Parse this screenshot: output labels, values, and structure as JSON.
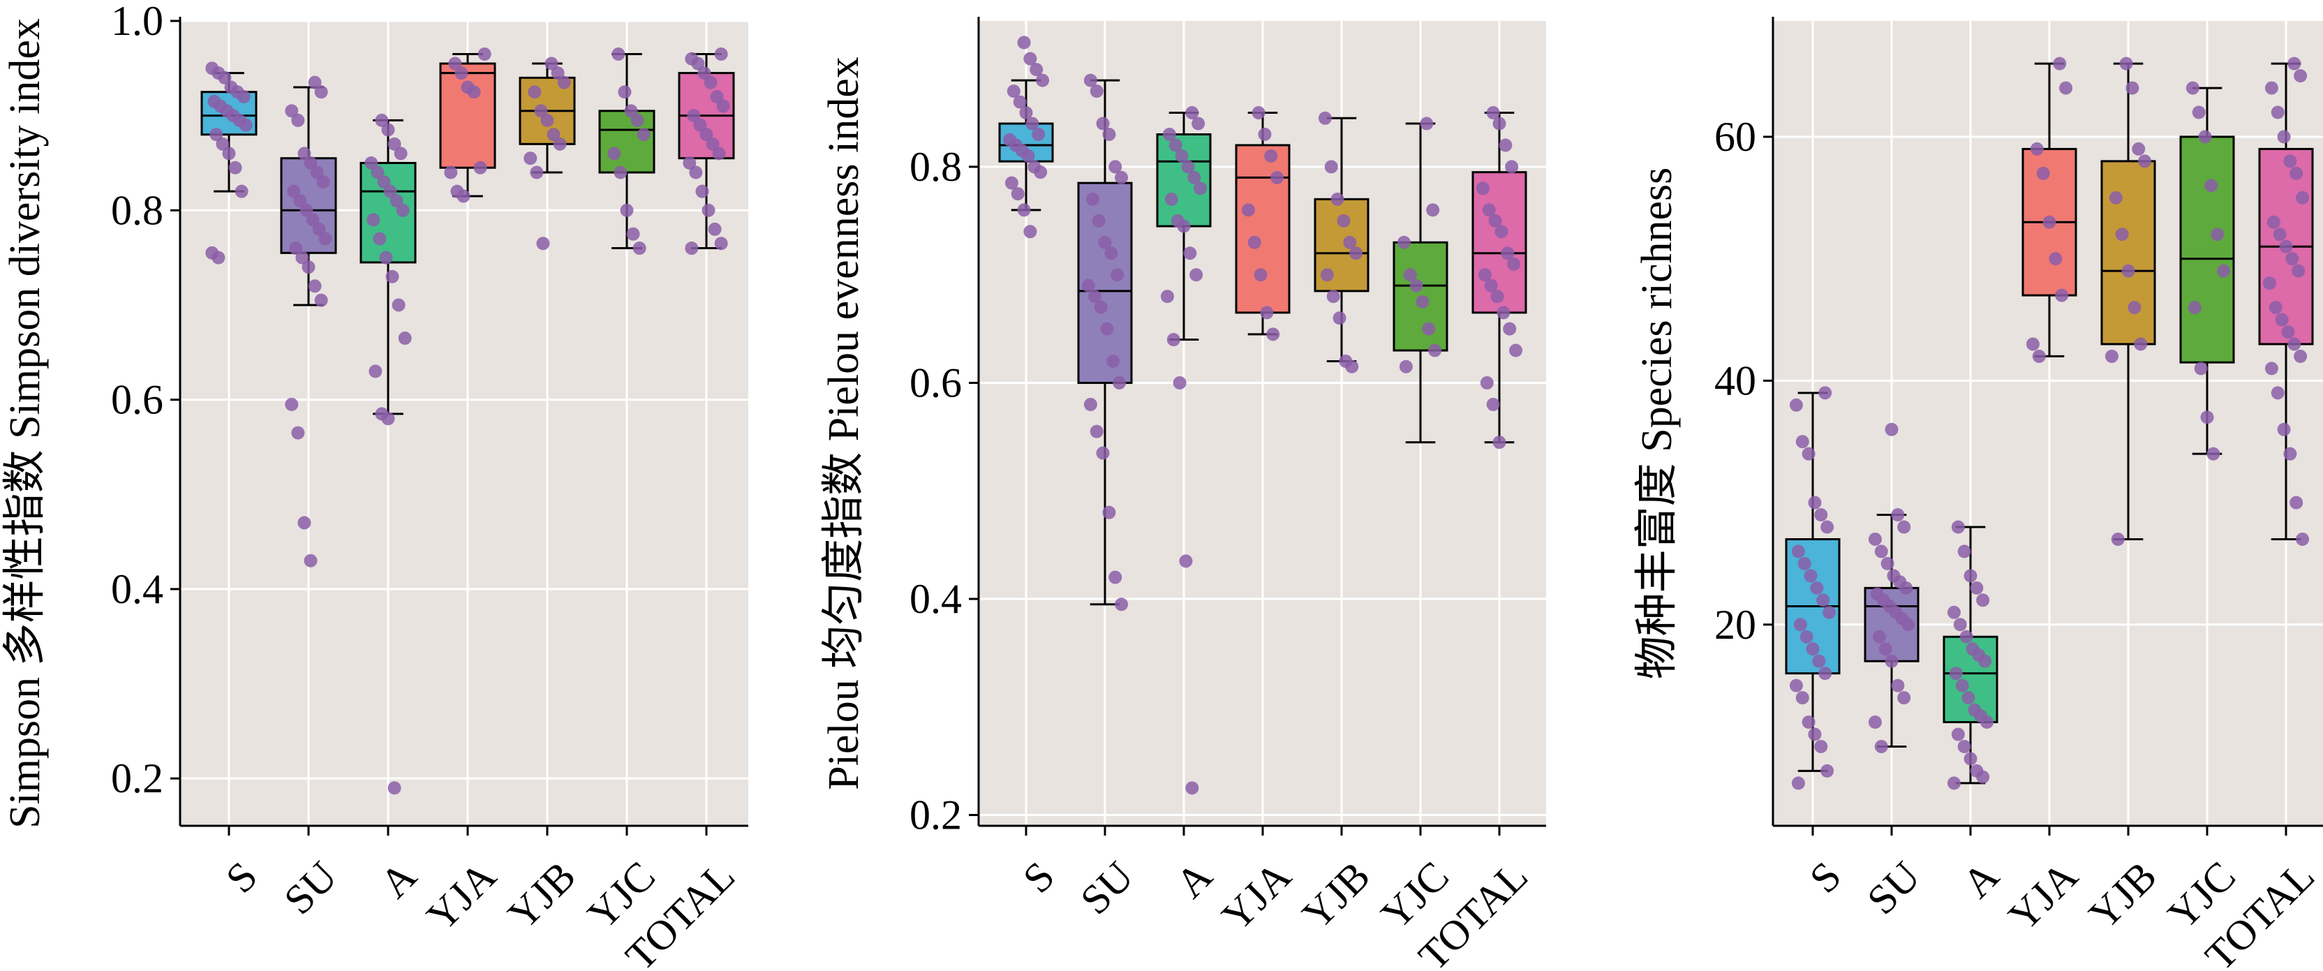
{
  "colors": {
    "panel_bg": "#e8e3df",
    "grid": "#ffffff",
    "point": "#8b5ea8",
    "groups": [
      "#4cb3d9",
      "#8f80b9",
      "#3fbf86",
      "#f07a72",
      "#c49a37",
      "#5eaa3c",
      "#dd6aa9"
    ]
  },
  "categories": [
    "S",
    "SU",
    "A",
    "YJA",
    "YJB",
    "YJC",
    "TOTAL"
  ],
  "chart_data": [
    {
      "type": "box",
      "ylabel": "Simpson 多样性指数 Simpson diversity index",
      "ylim": [
        0.15,
        1.0
      ],
      "yticks": [
        0.2,
        0.4,
        0.6,
        0.8,
        1.0
      ],
      "ytick_labels": [
        "0.2",
        "0.4",
        "0.6",
        "0.8",
        "1.0"
      ],
      "boxes": [
        {
          "name": "S",
          "q1": 0.88,
          "median": 0.9,
          "q3": 0.925,
          "whisker_low": 0.82,
          "whisker_high": 0.945
        },
        {
          "name": "SU",
          "q1": 0.755,
          "median": 0.8,
          "q3": 0.855,
          "whisker_low": 0.7,
          "whisker_high": 0.93
        },
        {
          "name": "A",
          "q1": 0.745,
          "median": 0.82,
          "q3": 0.85,
          "whisker_low": 0.585,
          "whisker_high": 0.895
        },
        {
          "name": "YJA",
          "q1": 0.845,
          "median": 0.945,
          "q3": 0.955,
          "whisker_low": 0.815,
          "whisker_high": 0.965
        },
        {
          "name": "YJB",
          "q1": 0.87,
          "median": 0.905,
          "q3": 0.94,
          "whisker_low": 0.84,
          "whisker_high": 0.955
        },
        {
          "name": "YJC",
          "q1": 0.84,
          "median": 0.885,
          "q3": 0.905,
          "whisker_low": 0.76,
          "whisker_high": 0.965
        },
        {
          "name": "TOTAL",
          "q1": 0.855,
          "median": 0.9,
          "q3": 0.945,
          "whisker_low": 0.76,
          "whisker_high": 0.965
        }
      ],
      "points": [
        [
          0.95,
          0.945,
          0.94,
          0.93,
          0.925,
          0.92,
          0.915,
          0.91,
          0.905,
          0.9,
          0.895,
          0.89,
          0.88,
          0.87,
          0.86,
          0.845,
          0.82,
          0.755,
          0.75
        ],
        [
          0.935,
          0.925,
          0.905,
          0.895,
          0.86,
          0.85,
          0.84,
          0.83,
          0.82,
          0.81,
          0.8,
          0.79,
          0.78,
          0.77,
          0.76,
          0.75,
          0.74,
          0.72,
          0.705,
          0.595,
          0.565,
          0.47,
          0.43
        ],
        [
          0.895,
          0.885,
          0.87,
          0.86,
          0.85,
          0.84,
          0.83,
          0.82,
          0.81,
          0.8,
          0.79,
          0.77,
          0.75,
          0.73,
          0.7,
          0.665,
          0.63,
          0.585,
          0.58,
          0.19
        ],
        [
          0.965,
          0.955,
          0.945,
          0.93,
          0.925,
          0.845,
          0.84,
          0.82,
          0.815
        ],
        [
          0.955,
          0.945,
          0.935,
          0.925,
          0.905,
          0.895,
          0.88,
          0.87,
          0.855,
          0.84,
          0.765
        ],
        [
          0.965,
          0.925,
          0.905,
          0.895,
          0.88,
          0.86,
          0.84,
          0.8,
          0.775,
          0.76
        ],
        [
          0.965,
          0.96,
          0.955,
          0.945,
          0.935,
          0.92,
          0.91,
          0.9,
          0.89,
          0.88,
          0.87,
          0.86,
          0.85,
          0.84,
          0.82,
          0.8,
          0.78,
          0.765,
          0.76
        ]
      ]
    },
    {
      "type": "box",
      "ylabel": "Pielou 均匀度指数 Pielou evenness index",
      "ylim": [
        0.19,
        0.935
      ],
      "yticks": [
        0.2,
        0.4,
        0.6,
        0.8
      ],
      "ytick_labels": [
        "0.2",
        "0.4",
        "0.6",
        "0.8"
      ],
      "boxes": [
        {
          "name": "S",
          "q1": 0.805,
          "median": 0.82,
          "q3": 0.84,
          "whisker_low": 0.76,
          "whisker_high": 0.88
        },
        {
          "name": "SU",
          "q1": 0.6,
          "median": 0.685,
          "q3": 0.785,
          "whisker_low": 0.395,
          "whisker_high": 0.88
        },
        {
          "name": "A",
          "q1": 0.745,
          "median": 0.805,
          "q3": 0.83,
          "whisker_low": 0.64,
          "whisker_high": 0.85
        },
        {
          "name": "YJA",
          "q1": 0.665,
          "median": 0.79,
          "q3": 0.82,
          "whisker_low": 0.645,
          "whisker_high": 0.85
        },
        {
          "name": "YJB",
          "q1": 0.685,
          "median": 0.72,
          "q3": 0.77,
          "whisker_low": 0.62,
          "whisker_high": 0.845
        },
        {
          "name": "YJC",
          "q1": 0.63,
          "median": 0.69,
          "q3": 0.73,
          "whisker_low": 0.545,
          "whisker_high": 0.84
        },
        {
          "name": "TOTAL",
          "q1": 0.665,
          "median": 0.72,
          "q3": 0.795,
          "whisker_low": 0.545,
          "whisker_high": 0.85
        }
      ],
      "points": [
        [
          0.915,
          0.9,
          0.89,
          0.88,
          0.87,
          0.86,
          0.85,
          0.84,
          0.83,
          0.825,
          0.82,
          0.815,
          0.81,
          0.8,
          0.795,
          0.785,
          0.775,
          0.76,
          0.74
        ],
        [
          0.88,
          0.87,
          0.84,
          0.83,
          0.8,
          0.79,
          0.77,
          0.75,
          0.73,
          0.72,
          0.7,
          0.69,
          0.68,
          0.67,
          0.65,
          0.62,
          0.6,
          0.58,
          0.555,
          0.535,
          0.48,
          0.42,
          0.395
        ],
        [
          0.85,
          0.84,
          0.83,
          0.82,
          0.81,
          0.8,
          0.79,
          0.78,
          0.77,
          0.75,
          0.745,
          0.72,
          0.7,
          0.68,
          0.64,
          0.6,
          0.435,
          0.225
        ],
        [
          0.85,
          0.83,
          0.81,
          0.79,
          0.76,
          0.73,
          0.7,
          0.665,
          0.645
        ],
        [
          0.845,
          0.8,
          0.77,
          0.75,
          0.73,
          0.72,
          0.7,
          0.68,
          0.66,
          0.62,
          0.615
        ],
        [
          0.84,
          0.76,
          0.73,
          0.7,
          0.69,
          0.675,
          0.65,
          0.63,
          0.615
        ],
        [
          0.85,
          0.84,
          0.82,
          0.8,
          0.78,
          0.76,
          0.75,
          0.74,
          0.72,
          0.71,
          0.7,
          0.69,
          0.68,
          0.665,
          0.65,
          0.63,
          0.6,
          0.58,
          0.545
        ]
      ]
    },
    {
      "type": "box",
      "ylabel": "物种丰富度 Species richness",
      "ylim": [
        3.5,
        69.5
      ],
      "yticks": [
        20,
        40,
        60
      ],
      "ytick_labels": [
        "20",
        "40",
        "60"
      ],
      "boxes": [
        {
          "name": "S",
          "q1": 16,
          "median": 21.5,
          "q3": 27,
          "whisker_low": 8,
          "whisker_high": 39
        },
        {
          "name": "SU",
          "q1": 17,
          "median": 21.5,
          "q3": 23,
          "whisker_low": 10,
          "whisker_high": 29
        },
        {
          "name": "A",
          "q1": 12,
          "median": 16,
          "q3": 19,
          "whisker_low": 7,
          "whisker_high": 28
        },
        {
          "name": "YJA",
          "q1": 47,
          "median": 53,
          "q3": 59,
          "whisker_low": 42,
          "whisker_high": 66
        },
        {
          "name": "YJB",
          "q1": 43,
          "median": 49,
          "q3": 58,
          "whisker_low": 27,
          "whisker_high": 66
        },
        {
          "name": "YJC",
          "q1": 41.5,
          "median": 50,
          "q3": 60,
          "whisker_low": 34,
          "whisker_high": 64
        },
        {
          "name": "TOTAL",
          "q1": 43,
          "median": 51,
          "q3": 59,
          "whisker_low": 27,
          "whisker_high": 66
        }
      ],
      "points": [
        [
          39,
          38,
          35,
          34,
          30,
          29,
          28,
          26,
          25,
          24,
          23,
          22,
          21,
          20,
          19,
          18,
          17,
          16,
          15,
          14,
          12,
          11,
          10,
          8,
          7
        ],
        [
          36,
          29,
          28,
          27,
          26,
          25,
          24,
          23.5,
          23,
          22.5,
          22,
          21.5,
          21,
          20.5,
          20,
          19,
          18,
          17,
          15,
          14,
          12,
          10
        ],
        [
          28,
          26,
          24,
          23,
          22,
          21,
          20,
          19,
          18,
          17.5,
          17,
          16,
          15,
          14,
          13,
          12.5,
          12,
          11,
          10,
          9,
          8,
          7.5,
          7
        ],
        [
          66,
          64,
          59,
          57,
          53,
          50,
          47,
          43,
          42
        ],
        [
          66,
          64,
          59,
          58,
          55,
          52,
          49,
          46,
          43,
          42,
          27
        ],
        [
          64,
          62,
          60,
          56,
          52,
          49,
          46,
          41,
          37,
          34
        ],
        [
          66,
          65,
          64,
          62,
          60,
          58,
          57,
          55,
          53,
          52,
          51,
          50,
          49,
          48,
          46,
          45,
          44,
          43,
          42,
          41,
          39,
          36,
          34,
          30,
          27
        ]
      ]
    }
  ]
}
